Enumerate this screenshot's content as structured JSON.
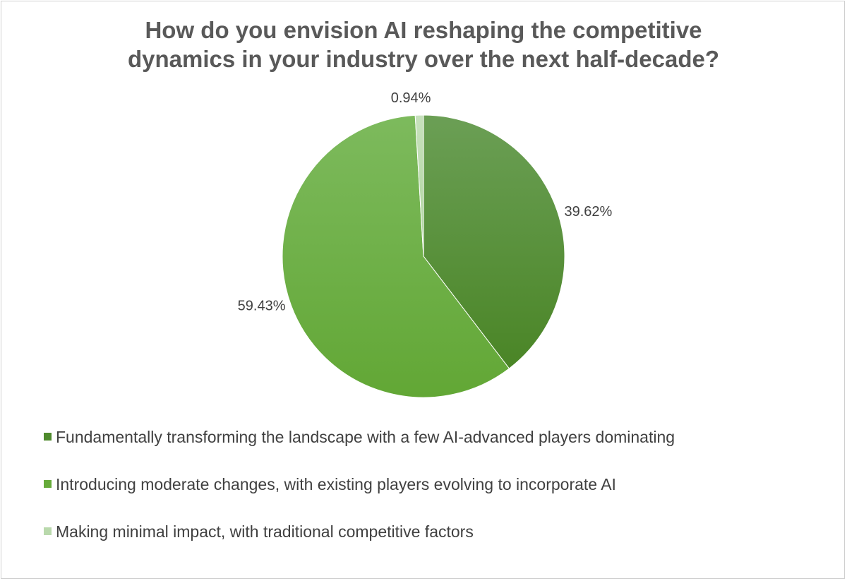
{
  "chart_data": {
    "type": "pie",
    "title": "How do you envision AI reshaping the competitive dynamics in your industry over the next half-decade?",
    "title_lines": [
      "How do you envision AI reshaping the competitive",
      "dynamics in your industry over the next half-decade?"
    ],
    "slices": [
      {
        "label": "Fundamentally transforming the landscape with a few AI-advanced players dominating",
        "value": 39.62,
        "value_label": "39.62%",
        "color": "#5a9437"
      },
      {
        "label": "Introducing moderate changes, with existing players evolving to incorporate AI",
        "value": 59.43,
        "value_label": "59.43%",
        "color": "#6db141"
      },
      {
        "label": "Making minimal impact, with traditional competitive factors",
        "value": 0.94,
        "value_label": "0.94%",
        "color": "#bcdcb0"
      }
    ],
    "legend_position": "bottom"
  }
}
